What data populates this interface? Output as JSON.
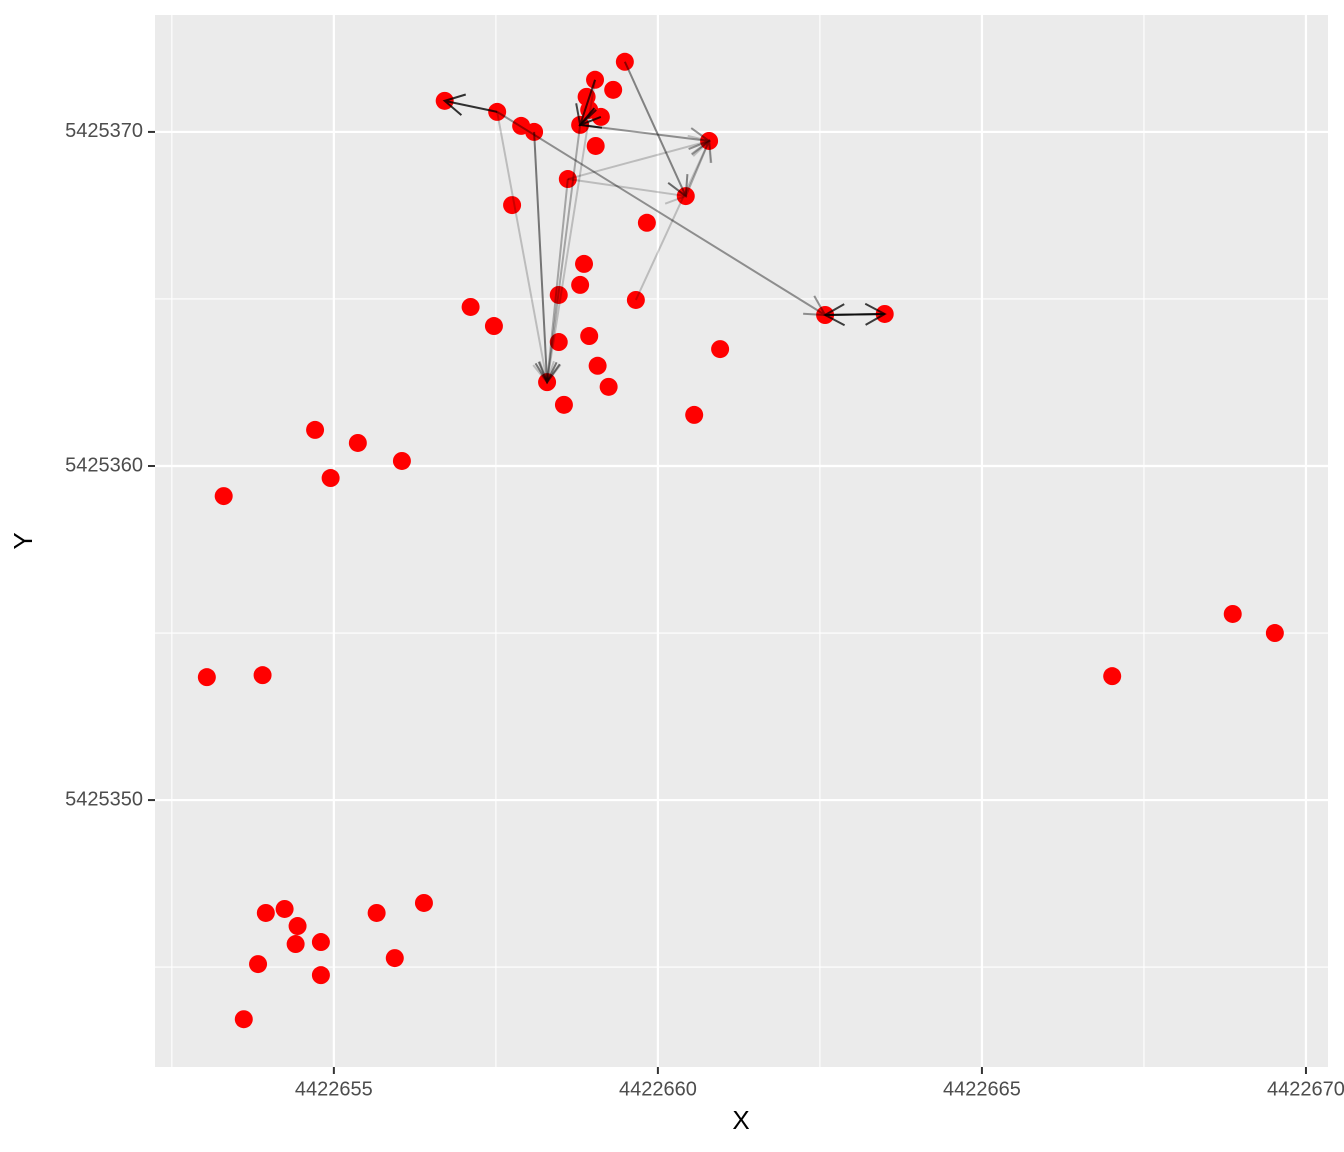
{
  "chart_data": {
    "type": "scatter",
    "x_label": "X",
    "y_label": "Y",
    "xlim": [
      4422652.24,
      4422670.34
    ],
    "ylim": [
      5425342.01,
      5425373.5
    ],
    "xticks": [
      4422655,
      4422660,
      4422665,
      4422670
    ],
    "yticks": [
      5425350,
      5425360,
      5425370
    ],
    "xminor": [
      4422652.5,
      4422657.5,
      4422662.5,
      4422667.5
    ],
    "yminor": [
      5425345,
      5425355,
      5425365
    ],
    "grid": true,
    "color": "#ff0000",
    "x": [
      4422656.71,
      4422657.52,
      4422657.89,
      4422658.09,
      4422658.8,
      4422658.9,
      4422659.03,
      4422659.31,
      4422659.49,
      4422659.12,
      4422659.04,
      4422658.61,
      4422657.75,
      4422660.79,
      4422660.43,
      4422659.83,
      4422658.86,
      4422658.8,
      4422658.47,
      4422659.66,
      4422657.11,
      4422657.47,
      4422658.94,
      4422658.47,
      4422660.96,
      4422659.07,
      4422658.29,
      4422659.24,
      4422658.55,
      4422660.56,
      4422662.58,
      4422663.5,
      4422654.71,
      4422655.37,
      4422656.05,
      4422654.95,
      4422653.3,
      4422653.04,
      4422653.9,
      4422667.01,
      4422668.87,
      4422669.52,
      4422656.39,
      4422653.95,
      4422654.24,
      4422654.44,
      4422655.66,
      4422654.41,
      4422654.8,
      4422653.83,
      4422655.94,
      4422654.8,
      4422653.61,
      4422658.94
    ],
    "values": [
      5425370.93,
      5425370.6,
      5425370.18,
      5425370.0,
      5425370.21,
      5425371.05,
      5425371.56,
      5425371.26,
      5425372.1,
      5425370.45,
      5425369.58,
      5425368.59,
      5425367.81,
      5425369.73,
      5425368.08,
      5425367.28,
      5425366.05,
      5425365.42,
      5425365.12,
      5425364.97,
      5425364.76,
      5425364.19,
      5425363.89,
      5425363.71,
      5425363.5,
      5425363.0,
      5425362.51,
      5425362.37,
      5425361.83,
      5425361.53,
      5425364.52,
      5425364.55,
      5425361.08,
      5425360.69,
      5425360.15,
      5425359.64,
      5425359.1,
      5425353.68,
      5425353.74,
      5425353.71,
      5425355.57,
      5425355.0,
      5425346.92,
      5425346.62,
      5425346.74,
      5425346.23,
      5425346.62,
      5425345.69,
      5425345.75,
      5425345.09,
      5425345.27,
      5425344.76,
      5425343.44,
      5425370.66
    ],
    "arrows": [
      {
        "x0": 4422663.5,
        "y0": 5425364.55,
        "x1": 4422662.58,
        "y1": 5425364.52,
        "alpha": 0.75
      },
      {
        "x0": 4422662.58,
        "y0": 5425364.52,
        "x1": 4422663.5,
        "y1": 5425364.55,
        "alpha": 0.75
      },
      {
        "x0": 4422657.52,
        "y0": 5425370.6,
        "x1": 4422662.58,
        "y1": 5425364.52,
        "alpha": 0.4
      },
      {
        "x0": 4422657.52,
        "y0": 5425370.6,
        "x1": 4422656.71,
        "y1": 5425370.93,
        "alpha": 0.8
      },
      {
        "x0": 4422658.09,
        "y0": 5425370.0,
        "x1": 4422658.29,
        "y1": 5425362.51,
        "alpha": 0.5
      },
      {
        "x0": 4422657.52,
        "y0": 5425370.6,
        "x1": 4422658.29,
        "y1": 5425362.51,
        "alpha": 0.2
      },
      {
        "x0": 4422658.61,
        "y0": 5425368.59,
        "x1": 4422658.29,
        "y1": 5425362.51,
        "alpha": 0.3
      },
      {
        "x0": 4422658.8,
        "y0": 5425370.21,
        "x1": 4422658.29,
        "y1": 5425362.51,
        "alpha": 0.3
      },
      {
        "x0": 4422659.03,
        "y0": 5425371.56,
        "x1": 4422658.29,
        "y1": 5425362.51,
        "alpha": 0.2
      },
      {
        "x0": 4422659.49,
        "y0": 5425372.1,
        "x1": 4422660.43,
        "y1": 5425368.08,
        "alpha": 0.45
      },
      {
        "x0": 4422658.8,
        "y0": 5425370.21,
        "x1": 4422660.79,
        "y1": 5425369.73,
        "alpha": 0.4
      },
      {
        "x0": 4422658.61,
        "y0": 5425368.59,
        "x1": 4422660.79,
        "y1": 5425369.73,
        "alpha": 0.2
      },
      {
        "x0": 4422658.61,
        "y0": 5425368.59,
        "x1": 4422660.43,
        "y1": 5425368.08,
        "alpha": 0.2
      },
      {
        "x0": 4422659.66,
        "y0": 5425364.97,
        "x1": 4422660.79,
        "y1": 5425369.73,
        "alpha": 0.2
      },
      {
        "x0": 4422660.43,
        "y0": 5425368.08,
        "x1": 4422660.79,
        "y1": 5425369.73,
        "alpha": 0.3
      },
      {
        "x0": 4422659.12,
        "y0": 5425370.45,
        "x1": 4422658.8,
        "y1": 5425370.21,
        "alpha": 0.8
      },
      {
        "x0": 4422659.03,
        "y0": 5425371.56,
        "x1": 4422658.8,
        "y1": 5425370.21,
        "alpha": 0.7
      }
    ]
  }
}
